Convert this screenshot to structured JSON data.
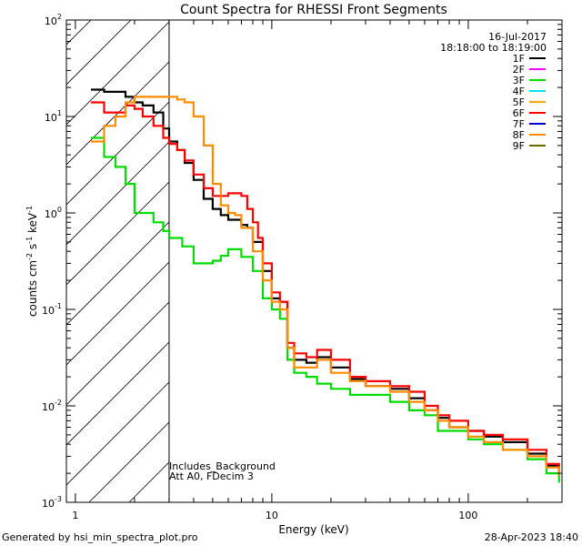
{
  "chart_data": {
    "type": "line",
    "title": "Count Spectra for RHESSI Front Segments",
    "xlabel": "Energy (keV)",
    "ylabel": "counts cm^-2 s^-1 keV^-1",
    "ylabel_parts": {
      "main": "counts cm",
      "e1": "-2",
      "s": " s",
      "e2": "-1",
      "kev": " keV",
      "e3": "-1"
    },
    "xscale": "log",
    "yscale": "log",
    "xlim": [
      0.9,
      300
    ],
    "ylim": [
      0.001,
      100
    ],
    "x_ticks": [
      {
        "value": 1,
        "label": "1"
      },
      {
        "value": 10,
        "label": "10"
      },
      {
        "value": 100,
        "label": "100"
      }
    ],
    "y_ticks": [
      {
        "value": 0.001,
        "base": "10",
        "exp": "-3"
      },
      {
        "value": 0.01,
        "base": "10",
        "exp": "-2"
      },
      {
        "value": 0.1,
        "base": "10",
        "exp": "-1"
      },
      {
        "value": 1,
        "base": "10",
        "exp": "0"
      },
      {
        "value": 10,
        "base": "10",
        "exp": "1"
      },
      {
        "value": 100,
        "base": "10",
        "exp": "2"
      }
    ],
    "shaded_region": {
      "x_range": [
        0.9,
        3
      ],
      "style": "hatched"
    },
    "legend_position": "top-right",
    "legend": {
      "date": "16-Jul-2017",
      "time_range": "18:18:00 to 18:19:00"
    },
    "annotations": [
      "Includes_Background",
      "Att A0, FDecim 3"
    ],
    "series": [
      {
        "name": "1F",
        "color": "#000000",
        "points": [
          [
            1.2,
            19
          ],
          [
            1.3,
            19
          ],
          [
            1.4,
            18
          ],
          [
            1.6,
            18
          ],
          [
            1.8,
            16
          ],
          [
            2.0,
            14
          ],
          [
            2.2,
            13
          ],
          [
            2.5,
            11
          ],
          [
            2.8,
            7.5
          ],
          [
            3.0,
            5.5
          ],
          [
            3.3,
            4.5
          ],
          [
            3.6,
            3.3
          ],
          [
            4.0,
            2.2
          ],
          [
            4.5,
            1.4
          ],
          [
            5.0,
            1.1
          ],
          [
            5.5,
            0.95
          ],
          [
            6.0,
            0.85
          ],
          [
            7.0,
            0.75
          ],
          [
            7.5,
            0.7
          ],
          [
            8.0,
            0.5
          ],
          [
            9.0,
            0.25
          ],
          [
            10.0,
            0.13
          ],
          [
            11.0,
            0.12
          ],
          [
            12.0,
            0.04
          ],
          [
            13.0,
            0.03
          ],
          [
            15.0,
            0.028
          ],
          [
            17.0,
            0.032
          ],
          [
            20.0,
            0.025
          ],
          [
            25.0,
            0.019
          ],
          [
            30.0,
            0.016
          ],
          [
            40.0,
            0.015
          ],
          [
            50.0,
            0.012
          ],
          [
            60.0,
            0.009
          ],
          [
            70.0,
            0.0075
          ],
          [
            80.0,
            0.006
          ],
          [
            100.0,
            0.0055
          ],
          [
            120.0,
            0.0048
          ],
          [
            150.0,
            0.0042
          ],
          [
            200.0,
            0.0032
          ],
          [
            250.0,
            0.0024
          ],
          [
            290.0,
            0.002
          ]
        ]
      },
      {
        "name": "2F",
        "color": "#ff00ff",
        "points": []
      },
      {
        "name": "3F",
        "color": "#00dd00",
        "points": [
          [
            1.2,
            6
          ],
          [
            1.4,
            3.8
          ],
          [
            1.6,
            3.0
          ],
          [
            1.8,
            2.0
          ],
          [
            2.0,
            1.0
          ],
          [
            2.5,
            0.8
          ],
          [
            2.8,
            0.65
          ],
          [
            3.0,
            0.55
          ],
          [
            3.5,
            0.45
          ],
          [
            4.0,
            0.3
          ],
          [
            4.5,
            0.3
          ],
          [
            5.0,
            0.32
          ],
          [
            5.5,
            0.36
          ],
          [
            6.0,
            0.42
          ],
          [
            6.5,
            0.42
          ],
          [
            7.0,
            0.35
          ],
          [
            8.0,
            0.25
          ],
          [
            9.0,
            0.13
          ],
          [
            10.0,
            0.1
          ],
          [
            11.0,
            0.08
          ],
          [
            12.0,
            0.03
          ],
          [
            13.0,
            0.022
          ],
          [
            15.0,
            0.02
          ],
          [
            17.0,
            0.017
          ],
          [
            20.0,
            0.015
          ],
          [
            25.0,
            0.013
          ],
          [
            30.0,
            0.013
          ],
          [
            40.0,
            0.011
          ],
          [
            50.0,
            0.009
          ],
          [
            60.0,
            0.008
          ],
          [
            70.0,
            0.0055
          ],
          [
            80.0,
            0.0055
          ],
          [
            100.0,
            0.0045
          ],
          [
            120.0,
            0.004
          ],
          [
            150.0,
            0.0035
          ],
          [
            200.0,
            0.0028
          ],
          [
            250.0,
            0.002
          ],
          [
            290.0,
            0.0016
          ]
        ]
      },
      {
        "name": "4F",
        "color": "#00e5ee",
        "points": []
      },
      {
        "name": "5F",
        "color": "#ffa500",
        "points": []
      },
      {
        "name": "6F",
        "color": "#ff0000",
        "points": [
          [
            1.2,
            14
          ],
          [
            1.4,
            11
          ],
          [
            1.6,
            11
          ],
          [
            1.8,
            13
          ],
          [
            2.0,
            12
          ],
          [
            2.2,
            10
          ],
          [
            2.5,
            8
          ],
          [
            2.8,
            6
          ],
          [
            3.0,
            5.2
          ],
          [
            3.3,
            4.5
          ],
          [
            3.6,
            3.5
          ],
          [
            4.0,
            2.5
          ],
          [
            4.5,
            1.8
          ],
          [
            5.0,
            1.5
          ],
          [
            5.5,
            1.5
          ],
          [
            6.0,
            1.6
          ],
          [
            6.5,
            1.6
          ],
          [
            7.0,
            1.5
          ],
          [
            7.5,
            1.1
          ],
          [
            8.0,
            0.8
          ],
          [
            8.5,
            0.55
          ],
          [
            9.0,
            0.3
          ],
          [
            10.0,
            0.15
          ],
          [
            11.0,
            0.12
          ],
          [
            12.0,
            0.045
          ],
          [
            13.0,
            0.035
          ],
          [
            15.0,
            0.032
          ],
          [
            17.0,
            0.038
          ],
          [
            20.0,
            0.03
          ],
          [
            25.0,
            0.02
          ],
          [
            30.0,
            0.018
          ],
          [
            40.0,
            0.016
          ],
          [
            50.0,
            0.014
          ],
          [
            60.0,
            0.01
          ],
          [
            70.0,
            0.008
          ],
          [
            80.0,
            0.007
          ],
          [
            100.0,
            0.0055
          ],
          [
            120.0,
            0.005
          ],
          [
            150.0,
            0.0045
          ],
          [
            200.0,
            0.0035
          ],
          [
            250.0,
            0.0025
          ],
          [
            290.0,
            0.002
          ]
        ]
      },
      {
        "name": "7F",
        "color": "#0000cc",
        "points": []
      },
      {
        "name": "8F",
        "color": "#ff8c00",
        "points": [
          [
            1.2,
            5.5
          ],
          [
            1.4,
            8
          ],
          [
            1.6,
            10
          ],
          [
            1.8,
            14
          ],
          [
            2.0,
            16
          ],
          [
            2.5,
            16
          ],
          [
            2.8,
            16
          ],
          [
            3.0,
            16
          ],
          [
            3.3,
            15
          ],
          [
            3.6,
            14
          ],
          [
            4.0,
            10
          ],
          [
            4.5,
            5
          ],
          [
            5.0,
            2.0
          ],
          [
            5.5,
            1.2
          ],
          [
            6.0,
            1.0
          ],
          [
            6.5,
            0.95
          ],
          [
            7.0,
            0.7
          ],
          [
            8.0,
            0.4
          ],
          [
            9.0,
            0.2
          ],
          [
            10.0,
            0.12
          ],
          [
            11.0,
            0.1
          ],
          [
            12.0,
            0.04
          ],
          [
            13.0,
            0.025
          ],
          [
            15.0,
            0.025
          ],
          [
            17.0,
            0.03
          ],
          [
            20.0,
            0.022
          ],
          [
            25.0,
            0.018
          ],
          [
            30.0,
            0.016
          ],
          [
            40.0,
            0.014
          ],
          [
            50.0,
            0.011
          ],
          [
            60.0,
            0.009
          ],
          [
            70.0,
            0.007
          ],
          [
            80.0,
            0.006
          ],
          [
            100.0,
            0.0048
          ],
          [
            120.0,
            0.0042
          ],
          [
            150.0,
            0.0035
          ],
          [
            200.0,
            0.003
          ],
          [
            250.0,
            0.0023
          ],
          [
            290.0,
            0.0019
          ]
        ]
      },
      {
        "name": "9F",
        "color": "#6b6b00",
        "points": []
      }
    ]
  },
  "footer": {
    "left": "Generated by hsi_min_spectra_plot.pro",
    "right": "28-Apr-2023 18:40"
  }
}
